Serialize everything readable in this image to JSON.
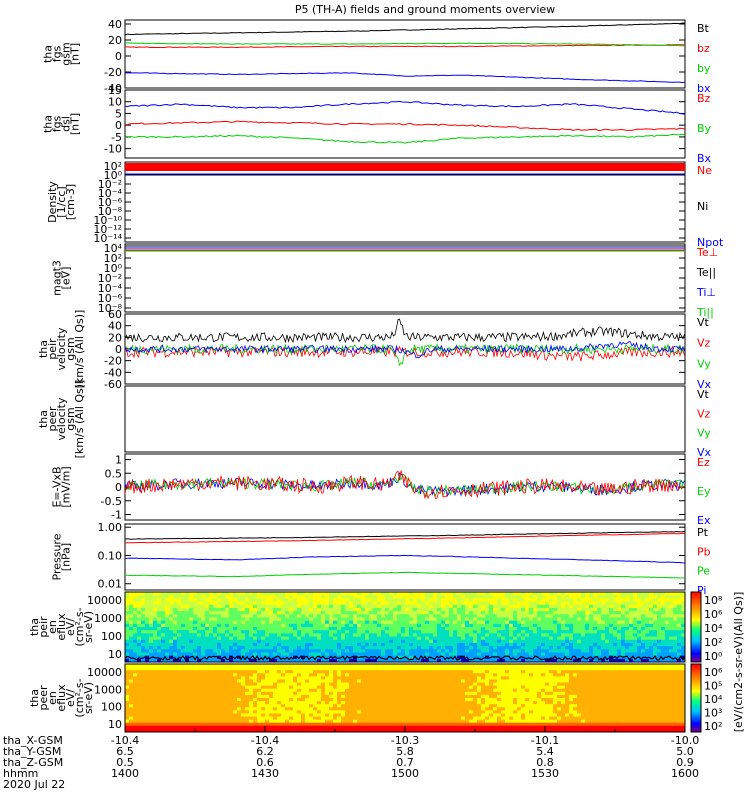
{
  "title": "P5 (TH-A) fields and ground moments overview",
  "colors": {
    "black": "#000000",
    "red": "#ff0000",
    "green": "#00d000",
    "blue": "#0000ff"
  },
  "chart_data": [
    {
      "panel": "fgs-gsm",
      "type": "line",
      "ylabel": [
        "tha",
        "fgs",
        "gsm",
        "[nT]"
      ],
      "yticks": [
        -40,
        -20,
        0,
        20,
        40
      ],
      "ylim": [
        -40,
        45
      ],
      "legend": [
        {
          "text": "Bt",
          "color": "black"
        },
        {
          "text": "bz",
          "color": "red"
        },
        {
          "text": "by",
          "color": "green"
        },
        {
          "text": "bx",
          "color": "blue"
        }
      ],
      "series": [
        {
          "name": "Bt",
          "color": "black",
          "x": [
            0,
            0.2,
            0.4,
            0.6,
            0.8,
            1.0
          ],
          "y": [
            27,
            29,
            31,
            34,
            37,
            41
          ]
        },
        {
          "name": "bz",
          "color": "red",
          "x": [
            0,
            0.2,
            0.4,
            0.6,
            0.8,
            1.0
          ],
          "y": [
            11,
            11,
            12,
            12,
            13,
            14
          ]
        },
        {
          "name": "by",
          "color": "green",
          "x": [
            0,
            0.2,
            0.4,
            0.6,
            0.8,
            1.0
          ],
          "y": [
            16,
            15,
            15,
            16,
            15,
            13
          ]
        },
        {
          "name": "bx",
          "color": "blue",
          "x": [
            0,
            0.2,
            0.4,
            0.5,
            0.6,
            0.8,
            1.0
          ],
          "y": [
            -21,
            -23,
            -21,
            -25,
            -24,
            -29,
            -33
          ]
        }
      ]
    },
    {
      "panel": "fgs-dsl",
      "type": "line",
      "ylabel": [
        "tha",
        "fgs",
        "dsl",
        "[nT]"
      ],
      "yticks": [
        -10,
        -5,
        0,
        5,
        10,
        15
      ],
      "ylim": [
        -14,
        15
      ],
      "legend": [
        {
          "text": "Bz",
          "color": "red"
        },
        {
          "text": "By",
          "color": "green"
        },
        {
          "text": "Bx",
          "color": "blue"
        }
      ],
      "series": [
        {
          "name": "Bz",
          "color": "red",
          "x": [
            0,
            0.1,
            0.2,
            0.3,
            0.4,
            0.5,
            0.6,
            0.7,
            0.8,
            0.9,
            1.0
          ],
          "y": [
            0.5,
            1.0,
            1.5,
            1.0,
            0.5,
            0.5,
            0.0,
            -1.0,
            -2.0,
            -2.0,
            -1.5
          ]
        },
        {
          "name": "By",
          "color": "green",
          "x": [
            0,
            0.1,
            0.2,
            0.3,
            0.4,
            0.5,
            0.6,
            0.7,
            0.8,
            0.9,
            1.0
          ],
          "y": [
            -5,
            -5,
            -4.5,
            -5.5,
            -7,
            -7.5,
            -5.5,
            -5,
            -4.5,
            -5,
            -4
          ]
        },
        {
          "name": "Bx",
          "color": "blue",
          "x": [
            0,
            0.1,
            0.2,
            0.3,
            0.4,
            0.5,
            0.6,
            0.7,
            0.8,
            0.9,
            1.0
          ],
          "y": [
            8,
            9,
            7.5,
            7.5,
            9,
            10,
            8.5,
            8,
            9,
            7,
            5
          ]
        }
      ]
    },
    {
      "panel": "density",
      "type": "line",
      "ylabel": [
        "Density",
        "[1/cc]",
        "[cm-3]"
      ],
      "yticks": [
        "10²",
        "10⁰",
        "10⁻²",
        "10⁻⁴",
        "10⁻⁶",
        "10⁻⁸",
        "10⁻¹⁰",
        "10⁻¹²",
        "10⁻¹⁴"
      ],
      "legend": [
        {
          "text": "Ne",
          "color": "red"
        },
        {
          "text": "Ni",
          "color": "black"
        },
        {
          "text": "Npot",
          "color": "blue"
        }
      ]
    },
    {
      "panel": "temperature",
      "type": "line",
      "ylabel": [
        "magt3",
        "[eV]"
      ],
      "yticks": [
        "10⁴",
        "10²",
        "10⁰",
        "10⁻²",
        "10⁻⁴",
        "10⁻⁶",
        "10⁻⁸"
      ],
      "legend": [
        {
          "text": "Te⊥",
          "color": "red"
        },
        {
          "text": "Te||",
          "color": "black"
        },
        {
          "text": "Ti⊥",
          "color": "blue"
        },
        {
          "text": "Ti||",
          "color": "green"
        }
      ]
    },
    {
      "panel": "peir-velocity",
      "type": "line",
      "ylabel": [
        "tha",
        "peir",
        "velocity",
        "gsm",
        "[km/s (All Qs)]"
      ],
      "yticks": [
        -60,
        -40,
        -20,
        0,
        20,
        40,
        60
      ],
      "ylim": [
        -60,
        60
      ],
      "legend": [
        {
          "text": "Vt",
          "color": "black"
        },
        {
          "text": "Vz",
          "color": "red"
        },
        {
          "text": "Vy",
          "color": "green"
        },
        {
          "text": "Vx",
          "color": "blue"
        }
      ],
      "series": [
        {
          "name": "Vt",
          "color": "black",
          "base": 20,
          "noise": 8
        },
        {
          "name": "Vz",
          "color": "red",
          "base": -5,
          "noise": 9
        },
        {
          "name": "Vy",
          "color": "green",
          "base": 0,
          "noise": 8
        },
        {
          "name": "Vx",
          "color": "blue",
          "base": 0,
          "noise": 6
        }
      ]
    },
    {
      "panel": "peer-velocity",
      "type": "line",
      "ylabel": [
        "tha",
        "peer",
        "velocity",
        "gsm",
        "[km/s (All Qs)]"
      ],
      "legend": [
        {
          "text": "Vt",
          "color": "black"
        },
        {
          "text": "Vz",
          "color": "red"
        },
        {
          "text": "Vy",
          "color": "green"
        },
        {
          "text": "Vx",
          "color": "blue"
        }
      ]
    },
    {
      "panel": "e-field",
      "type": "line",
      "ylabel": [
        "E=-VxB",
        "[mV/m]"
      ],
      "yticks": [
        -1.0,
        -0.5,
        0.0,
        0.5,
        1.0
      ],
      "ylim": [
        -1.2,
        1.2
      ],
      "legend": [
        {
          "text": "Ez",
          "color": "red"
        },
        {
          "text": "Ey",
          "color": "green"
        },
        {
          "text": "Ex",
          "color": "blue"
        }
      ]
    },
    {
      "panel": "pressure",
      "type": "line",
      "ylabel": [
        "Pressure",
        "[nPa]"
      ],
      "yticks": [
        "1.00",
        "0.10",
        "0.01"
      ],
      "ylim_log": [
        0.006,
        1.3
      ],
      "legend": [
        {
          "text": "Pt",
          "color": "black"
        },
        {
          "text": "Pb",
          "color": "red"
        },
        {
          "text": "Pe",
          "color": "green"
        },
        {
          "text": "Pi",
          "color": "blue"
        }
      ],
      "series": [
        {
          "name": "Pt",
          "color": "black",
          "x": [
            0,
            0.3,
            0.6,
            1.0
          ],
          "y": [
            0.38,
            0.43,
            0.52,
            0.7
          ]
        },
        {
          "name": "Pb",
          "color": "red",
          "x": [
            0,
            0.3,
            0.6,
            1.0
          ],
          "y": [
            0.28,
            0.33,
            0.42,
            0.6
          ]
        },
        {
          "name": "Pi",
          "color": "blue",
          "x": [
            0,
            0.2,
            0.35,
            0.5,
            0.7,
            1.0
          ],
          "y": [
            0.08,
            0.07,
            0.09,
            0.1,
            0.08,
            0.055
          ]
        },
        {
          "name": "Pe",
          "color": "green",
          "x": [
            0,
            0.2,
            0.35,
            0.5,
            0.7,
            1.0
          ],
          "y": [
            0.02,
            0.018,
            0.022,
            0.025,
            0.021,
            0.016
          ]
        }
      ]
    },
    {
      "panel": "peir-eflux",
      "type": "heatmap",
      "ylabel": [
        "tha",
        "peir",
        "en",
        "eflux",
        "eV/",
        "(cm²-s-",
        "sr-eV)"
      ],
      "yticks": [
        "10000",
        "1000",
        "100",
        "10"
      ]
    },
    {
      "panel": "peer-eflux",
      "type": "heatmap",
      "ylabel": [
        "tha",
        "peer",
        "en",
        "eflux",
        "eV/",
        "(cm²-s-",
        "sr-eV)"
      ],
      "yticks": [
        "10000",
        "1000",
        "100",
        "10"
      ]
    }
  ],
  "colorbar": {
    "label": "[eV/(cm2-s-sr-eV)(All Qs)]",
    "upper_ticks": [
      "10⁸",
      "10⁶",
      "10⁴",
      "10²",
      "10⁰"
    ],
    "lower_ticks": [
      "10⁶",
      "10⁵",
      "10⁴",
      "10³",
      "10²"
    ]
  },
  "xaxis": {
    "rows": [
      {
        "label": "tha_X-GSM",
        "values": [
          "-10.4",
          "-10.4",
          "-10.3",
          "-10.1",
          "-10.0"
        ]
      },
      {
        "label": "tha_Y-GSM",
        "values": [
          "6.5",
          "6.2",
          "5.8",
          "5.4",
          "5.0"
        ]
      },
      {
        "label": "tha_Z-GSM",
        "values": [
          "0.5",
          "0.6",
          "0.7",
          "0.8",
          "0.9"
        ]
      },
      {
        "label": "hhmm",
        "values": [
          "1400",
          "1430",
          "1500",
          "1530",
          "1600"
        ]
      }
    ],
    "date": "2020 Jul 22"
  }
}
